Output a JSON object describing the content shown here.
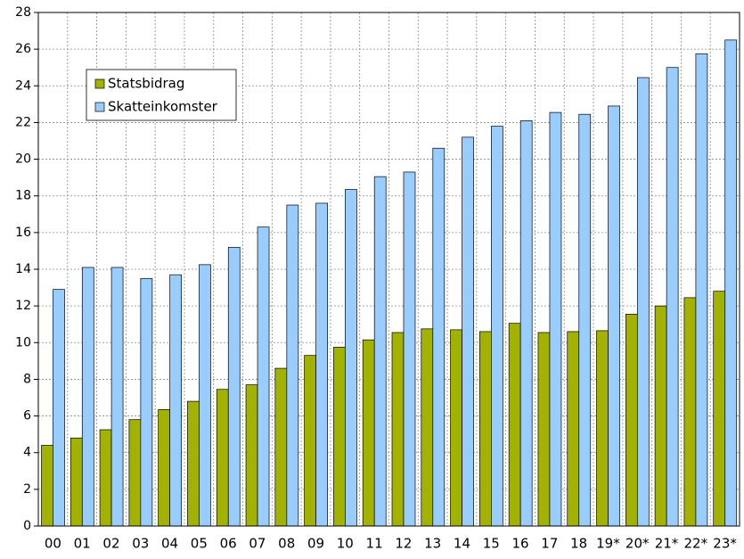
{
  "chart_data": {
    "type": "bar",
    "categories": [
      "00",
      "01",
      "02",
      "03",
      "04",
      "05",
      "06",
      "07",
      "08",
      "09",
      "10",
      "11",
      "12",
      "13",
      "14",
      "15",
      "16",
      "17",
      "18",
      "19*",
      "20*",
      "21*",
      "22*",
      "23*"
    ],
    "series": [
      {
        "name": "Statsbidrag",
        "color": "#a3b100",
        "values": [
          4.4,
          4.8,
          5.25,
          5.8,
          6.35,
          6.8,
          7.45,
          7.7,
          8.6,
          9.3,
          9.75,
          10.15,
          10.55,
          10.75,
          10.7,
          10.6,
          11.05,
          10.55,
          10.6,
          10.65,
          11.55,
          12.0,
          12.45,
          12.8
        ]
      },
      {
        "name": "Skatteinkomster",
        "color": "#99ccff",
        "values": [
          12.9,
          14.1,
          14.1,
          13.5,
          13.7,
          14.25,
          15.2,
          16.3,
          17.5,
          17.6,
          18.35,
          19.05,
          19.3,
          20.6,
          21.2,
          21.8,
          22.1,
          22.55,
          22.45,
          22.9,
          24.45,
          25.0,
          25.75,
          26.5
        ]
      }
    ],
    "ylim": [
      0,
      28
    ],
    "yticks": [
      0,
      2,
      4,
      6,
      8,
      10,
      12,
      14,
      16,
      18,
      20,
      22,
      24,
      26,
      28
    ],
    "grid": true
  }
}
